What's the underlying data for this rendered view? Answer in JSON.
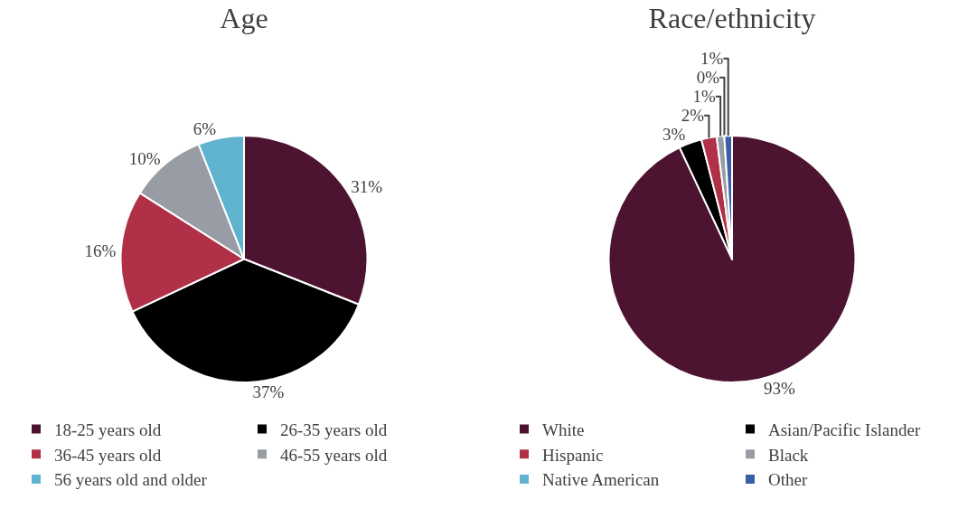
{
  "chart_data": [
    {
      "type": "pie",
      "title": "Age",
      "categories": [
        "18-25 years old",
        "26-35 years old",
        "36-45 years old",
        "46-55 years old",
        "56 years old and older"
      ],
      "values": [
        31,
        37,
        16,
        10,
        6
      ],
      "value_labels": [
        "31%",
        "37%",
        "16%",
        "10%",
        "6%"
      ],
      "colors": [
        "#4d1431",
        "#000000",
        "#b03048",
        "#979ca5",
        "#5fb3cf"
      ],
      "legend": "bottom"
    },
    {
      "type": "pie",
      "title": "Race/ethnicity",
      "categories": [
        "White",
        "Asian/Pacific Islander",
        "Hispanic",
        "Black",
        "Native American",
        "Other"
      ],
      "values": [
        93,
        3,
        2,
        1,
        0,
        1
      ],
      "value_labels": [
        "93%",
        "3%",
        "2%",
        "1%",
        "0%",
        "1%"
      ],
      "colors": [
        "#4d1431",
        "#000000",
        "#b03048",
        "#979ca5",
        "#5fb3cf",
        "#3a5ea8"
      ],
      "legend": "bottom"
    }
  ]
}
